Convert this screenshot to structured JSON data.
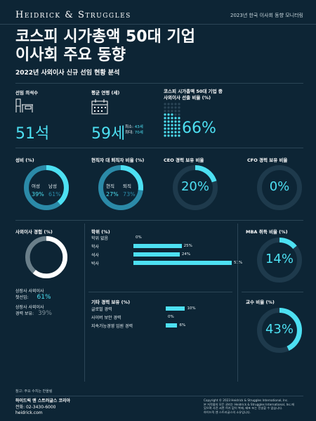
{
  "header": {
    "logo_text": "Heidrick & Struggles",
    "report_label": "2023년 한국 이사회 동향 모니터링"
  },
  "title_line1": "코스피 시가총액 50대 기업",
  "title_line2": "이사회 주요 동향",
  "subtitle": "2022년 사외이사 신규 선임 현황 분석",
  "seats": {
    "label": "선임 의석수",
    "value": "51석",
    "icon": "desk-chair-icon"
  },
  "age": {
    "label": "평균 연령 (세)",
    "value": "59세",
    "icon": "calendar-icon",
    "min_label": "최소:",
    "min_value": "43세",
    "max_label": "최대:",
    "max_value": "70세"
  },
  "companies": {
    "label_line1": "코스피 시가총액 50대 기업 중",
    "label_line2": "사외이사 선출 비율 (%)",
    "value": "66%",
    "percent": 66
  },
  "gender": {
    "label": "성비 (%)",
    "female_label": "여성",
    "female_value": "39%",
    "male_label": "남성",
    "male_value": "61%",
    "female_pct": 39
  },
  "executive": {
    "label": "현직자 대 퇴직자 비율 (%)",
    "current_label": "현직",
    "current_value": "27%",
    "retired_label": "퇴직",
    "retired_value": "73%",
    "current_pct": 27
  },
  "ceo": {
    "label": "CEO 경력 보유 비율",
    "value": "20%",
    "pct": 20
  },
  "cfo": {
    "label": "CFO 경력 보유 비율",
    "value": "0%",
    "pct": 0
  },
  "board_exp": {
    "label": "사외이사 경험 (%)",
    "first_label_1": "상장사 사외이사",
    "first_label_2": "첫선임:",
    "first_value": "61%",
    "prior_label_1": "상장사 사외이사",
    "prior_label_2": "경력 보유:",
    "prior_value": "39%",
    "first_pct": 61
  },
  "degree": {
    "label": "학위 (%)",
    "rows": [
      {
        "name": "학위 없음",
        "value": "0%",
        "pct": 0
      },
      {
        "name": "학사",
        "value": "25%",
        "pct": 25
      },
      {
        "name": "석사",
        "value": "24%",
        "pct": 24
      },
      {
        "name": "박사",
        "value": "51%",
        "pct": 51
      }
    ]
  },
  "mba": {
    "label": "MBA 취득 비율 (%)",
    "value": "14%",
    "pct": 14
  },
  "other": {
    "label": "기타 경력 보유 (%)",
    "rows": [
      {
        "name": "글로벌 경력",
        "value": "10%",
        "pct": 10
      },
      {
        "name": "사이버 보안 경력",
        "value": "0%",
        "pct": 0
      },
      {
        "name": "지속가능경영 임원 경력",
        "value": "6%",
        "pct": 6
      }
    ]
  },
  "professor": {
    "label": "교수 비율 (%)",
    "value": "43%",
    "pct": 43
  },
  "note": "참고: 주요 수치는 반올림",
  "footer": {
    "company": "하이드릭 앤 스트러글스 코리아",
    "phone": "전화: 02-3430-6000",
    "site": "heidrick.com",
    "copyright_1": "Copyright © 2023 Heidrick & Struggles International, Inc.",
    "copyright_2": "본 저작물의 모든 권리는 Heidrick & Struggles International, Inc.에",
    "copyright_3": "있으며 사전 서면 허가 없이 복제, 배포 또는 전송할 수 없습니다.",
    "copyright_4": "하이드릭 앤 스트러글스의 소유입니다."
  },
  "colors": {
    "bg": "#0d2535",
    "accent": "#4de0f2",
    "track": "#1e3a4c",
    "secondary": "#2b8aa8"
  }
}
